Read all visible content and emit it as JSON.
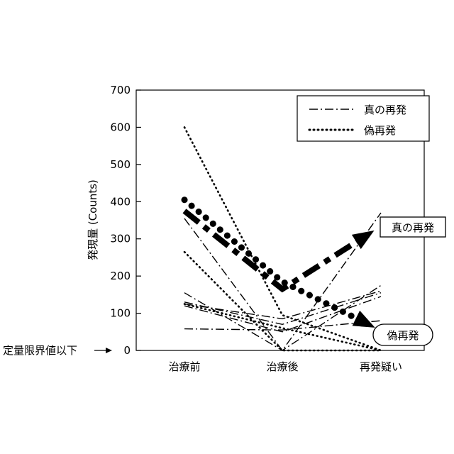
{
  "chart_data": {
    "type": "line",
    "categories": [
      "治療前",
      "治療後",
      "再発疑い"
    ],
    "ylabel": "発現量 (Counts)",
    "ylim": [
      0,
      700
    ],
    "yticks": [
      0,
      100,
      200,
      300,
      400,
      500,
      600,
      700
    ],
    "grid": false,
    "legend": {
      "position": "top-right",
      "entries": [
        {
          "label": "真の再発",
          "style": "dash-dot"
        },
        {
          "label": "偽再発",
          "style": "dotted"
        }
      ]
    },
    "below_limit_label": "定量限界値以下",
    "series": [
      {
        "style": "dash-dot",
        "values": [
          355,
          0,
          370
        ]
      },
      {
        "style": "dash-dot",
        "values": [
          155,
          0,
          175
        ]
      },
      {
        "style": "dash-dot",
        "values": [
          130,
          70,
          155
        ]
      },
      {
        "style": "dash-dot",
        "values": [
          125,
          85,
          160
        ]
      },
      {
        "style": "dash-dot",
        "values": [
          120,
          50,
          145
        ]
      },
      {
        "style": "dash-dot",
        "values": [
          58,
          55,
          80
        ]
      },
      {
        "style": "dotted",
        "values": [
          600,
          95,
          0
        ]
      },
      {
        "style": "dotted",
        "values": [
          265,
          0,
          0
        ]
      },
      {
        "style": "dotted",
        "values": [
          125,
          60,
          0
        ]
      }
    ],
    "trends": [
      {
        "style": "dash-dot",
        "label": "真の再発",
        "values": [
          375,
          165,
          300
        ]
      },
      {
        "style": "dotted",
        "label": "偽再発",
        "values": [
          405,
          185,
          80
        ]
      }
    ]
  }
}
